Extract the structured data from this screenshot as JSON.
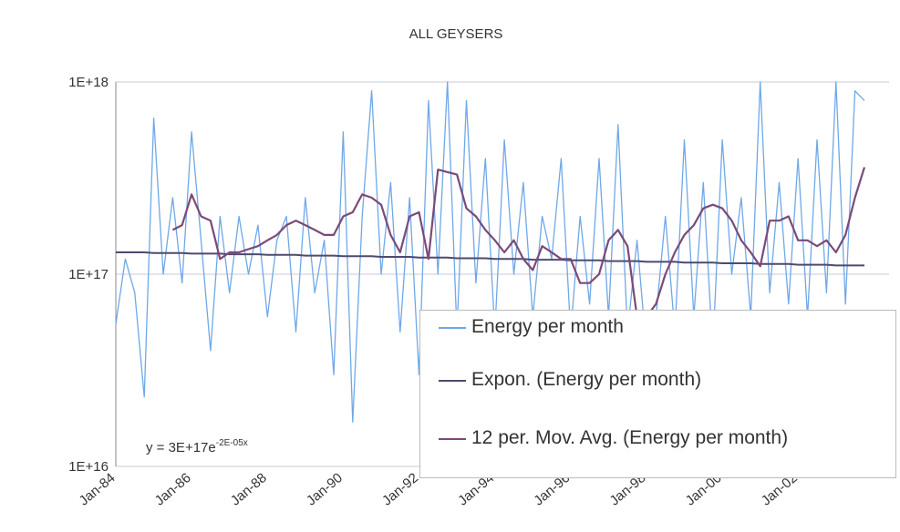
{
  "chart_data": {
    "type": "line",
    "title": "ALL GEYSERS",
    "annotation": "y = 3E+17e",
    "annotation_exponent": "-2E-05x",
    "log_y": true,
    "grid": true,
    "legend": "lower right",
    "ylim": [
      1e+16,
      1e+18
    ],
    "yticks": [
      {
        "value": 1e+16,
        "label": "1E+16"
      },
      {
        "value": 1e+17,
        "label": "1E+17"
      },
      {
        "value": 1e+18,
        "label": "1E+18"
      }
    ],
    "categories": [
      "Jan-84",
      null,
      null,
      null,
      null,
      null,
      null,
      null,
      "Jan-86",
      null,
      null,
      null,
      null,
      null,
      null,
      null,
      "Jan-88",
      null,
      null,
      null,
      null,
      null,
      null,
      null,
      "Jan-90",
      null,
      null,
      null,
      null,
      null,
      null,
      null,
      "Jan-92",
      null,
      null,
      null,
      null,
      null,
      null,
      null,
      "Jan-94",
      null,
      null,
      null,
      null,
      null,
      null,
      null,
      "Jan-96",
      null,
      null,
      null,
      null,
      null,
      null,
      null,
      "Jan-98",
      null,
      null,
      null,
      null,
      null,
      null,
      null,
      "Jan-00",
      null,
      null,
      null,
      null,
      null,
      null,
      null,
      "Jan-02",
      null,
      null,
      null,
      null,
      null,
      null,
      null
    ],
    "series": [
      {
        "name": "Energy per month",
        "color": "#6fa8e8",
        "width": 1.3,
        "values": [
          5.5e+16,
          1.2e+17,
          8e+16,
          2.3e+16,
          6.5e+17,
          1e+17,
          2.5e+17,
          9e+16,
          5.5e+17,
          1.5e+17,
          4e+16,
          2e+17,
          8e+16,
          2e+17,
          1e+17,
          1.8e+17,
          6e+16,
          1.5e+17,
          2e+17,
          5e+16,
          2.5e+17,
          8e+16,
          1.5e+17,
          3e+16,
          5.5e+17,
          1.7e+16,
          2e+17,
          9e+17,
          1e+17,
          3e+17,
          5e+16,
          2.5e+17,
          3e+16,
          8e+17,
          1e+17,
          1e+18,
          5e+16,
          8e+17,
          9e+16,
          4e+17,
          5e+16,
          5e+17,
          1e+17,
          3e+17,
          6e+16,
          2e+17,
          1.2e+17,
          4e+17,
          5e+16,
          2e+17,
          7e+16,
          4e+17,
          6e+16,
          6e+17,
          5e+16,
          1.5e+17,
          4e+16,
          6e+16,
          2e+17,
          5e+16,
          5e+17,
          6e+16,
          3e+17,
          4e+16,
          5e+17,
          1e+17,
          2.5e+17,
          6e+16,
          1e+18,
          8e+16,
          3e+17,
          7e+16,
          4e+17,
          6e+16,
          5e+17,
          8e+16,
          1e+18,
          7e+16,
          9e+17,
          8e+17
        ]
      },
      {
        "name": "Expon. (Energy per month)",
        "color": "#4f4a6e",
        "width": 2,
        "values": [
          1.3e+17,
          1.3e+17,
          1.3e+17,
          1.3e+17,
          1.29e+17,
          1.29e+17,
          1.29e+17,
          1.29e+17,
          1.28e+17,
          1.28e+17,
          1.28e+17,
          1.28e+17,
          1.27e+17,
          1.27e+17,
          1.27e+17,
          1.27e+17,
          1.26e+17,
          1.26e+17,
          1.26e+17,
          1.26e+17,
          1.25e+17,
          1.25e+17,
          1.25e+17,
          1.25e+17,
          1.24e+17,
          1.24e+17,
          1.24e+17,
          1.24e+17,
          1.23e+17,
          1.23e+17,
          1.23e+17,
          1.23e+17,
          1.22e+17,
          1.22e+17,
          1.22e+17,
          1.22e+17,
          1.21e+17,
          1.21e+17,
          1.21e+17,
          1.21e+17,
          1.2e+17,
          1.2e+17,
          1.2e+17,
          1.2e+17,
          1.19e+17,
          1.19e+17,
          1.19e+17,
          1.19e+17,
          1.18e+17,
          1.18e+17,
          1.18e+17,
          1.18e+17,
          1.17e+17,
          1.17e+17,
          1.17e+17,
          1.17e+17,
          1.16e+17,
          1.16e+17,
          1.16e+17,
          1.16e+17,
          1.15e+17,
          1.15e+17,
          1.15e+17,
          1.15e+17,
          1.14e+17,
          1.14e+17,
          1.14e+17,
          1.14e+17,
          1.13e+17,
          1.13e+17,
          1.13e+17,
          1.13e+17,
          1.12e+17,
          1.12e+17,
          1.12e+17,
          1.12e+17,
          1.11e+17,
          1.11e+17,
          1.11e+17,
          1.11e+17
        ]
      },
      {
        "name": "12 per. Mov. Avg. (Energy per month)",
        "color": "#7a4a78",
        "width": 2.2,
        "values": [
          null,
          null,
          null,
          null,
          null,
          null,
          1.7e+17,
          1.8e+17,
          2.6e+17,
          2e+17,
          1.9e+17,
          1.2e+17,
          1.3e+17,
          1.3e+17,
          1.35e+17,
          1.4e+17,
          1.5e+17,
          1.6e+17,
          1.8e+17,
          1.9e+17,
          1.8e+17,
          1.7e+17,
          1.6e+17,
          1.6e+17,
          2e+17,
          2.1e+17,
          2.6e+17,
          2.5e+17,
          2.3e+17,
          1.6e+17,
          1.3e+17,
          2e+17,
          2.1e+17,
          1.2e+17,
          3.5e+17,
          3.4e+17,
          3.3e+17,
          2.2e+17,
          2e+17,
          1.7e+17,
          1.5e+17,
          1.3e+17,
          1.5e+17,
          1.2e+17,
          1.05e+17,
          1.4e+17,
          1.3e+17,
          1.2e+17,
          1.2e+17,
          9e+16,
          9e+16,
          1e+17,
          1.5e+17,
          1.7e+17,
          1.4e+17,
          6e+16,
          6e+16,
          7e+16,
          1e+17,
          1.3e+17,
          1.6e+17,
          1.8e+17,
          2.2e+17,
          2.3e+17,
          2.2e+17,
          1.9e+17,
          1.5e+17,
          1.3e+17,
          1.1e+17,
          1.9e+17,
          1.9e+17,
          2e+17,
          1.5e+17,
          1.5e+17,
          1.4e+17,
          1.5e+17,
          1.3e+17,
          1.6e+17,
          2.5e+17,
          3.6e+17
        ]
      }
    ]
  }
}
